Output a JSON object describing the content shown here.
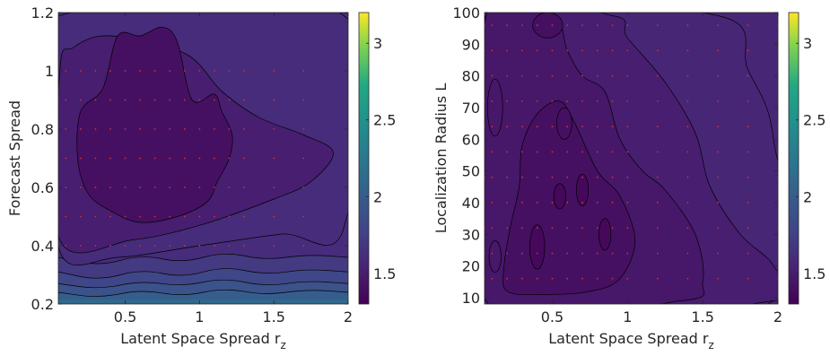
{
  "colors": {
    "viridis_low": "#440154",
    "viridis_mid": "#21918c",
    "viridis_high": "#fde725",
    "sample_points": "#d9302c",
    "contour_lines": "#000000"
  },
  "chart_data": [
    {
      "type": "heatmap",
      "subtype": "filled-contour",
      "xlabel": "Latent Space Spread r",
      "xlabel_subscript": "z",
      "ylabel": "Forecast Spread",
      "xlim": [
        0.05,
        2
      ],
      "ylim": [
        0.2,
        1.2
      ],
      "xticks": [
        0.5,
        1,
        1.5,
        2
      ],
      "xtick_labels": [
        "0.5",
        "1",
        "1.5",
        "2"
      ],
      "yticks": [
        0.2,
        0.4,
        0.6,
        0.8,
        1,
        1.2
      ],
      "ytick_labels": [
        "0.2",
        "0.4",
        "0.6",
        "0.8",
        "1",
        "1.2"
      ],
      "colorbar": {
        "range": [
          1.3,
          3.2
        ],
        "ticks": [
          1.5,
          2,
          2.5,
          3
        ],
        "tick_labels": [
          "1.5",
          "2",
          "2.5",
          "3"
        ],
        "colormap": "viridis"
      },
      "sample_x": [
        0.05,
        0.1,
        0.2,
        0.3,
        0.4,
        0.5,
        0.6,
        0.7,
        0.8,
        0.9,
        1.0,
        1.1,
        1.2,
        1.3,
        1.5,
        1.7,
        2.0
      ],
      "sample_y": [
        0.4,
        0.5,
        0.6,
        0.7,
        0.8,
        0.9,
        1.0
      ],
      "regions": [
        {
          "level": 1.6,
          "points": [
            [
              0.06,
              0.9
            ],
            [
              0.06,
              0.38
            ],
            [
              0.45,
              0.36
            ],
            [
              1.0,
              0.4
            ],
            [
              1.55,
              0.44
            ],
            [
              1.97,
              0.46
            ],
            [
              1.97,
              1.19
            ],
            [
              0.06,
              1.19
            ]
          ]
        },
        {
          "level": 1.5,
          "points": [
            [
              0.06,
              1.0
            ],
            [
              0.06,
              0.42
            ],
            [
              0.55,
              0.42
            ],
            [
              1.0,
              0.47
            ],
            [
              1.5,
              0.56
            ],
            [
              1.75,
              0.62
            ],
            [
              1.9,
              0.72
            ],
            [
              1.7,
              0.78
            ],
            [
              1.4,
              0.84
            ],
            [
              1.15,
              0.93
            ],
            [
              0.9,
              1.06
            ],
            [
              0.4,
              1.12
            ],
            [
              0.15,
              1.08
            ]
          ]
        },
        {
          "level": 1.4,
          "points": [
            [
              0.2,
              0.86
            ],
            [
              0.18,
              0.7
            ],
            [
              0.25,
              0.58
            ],
            [
              0.4,
              0.52
            ],
            [
              0.6,
              0.48
            ],
            [
              0.85,
              0.5
            ],
            [
              1.05,
              0.55
            ],
            [
              1.12,
              0.62
            ],
            [
              1.2,
              0.7
            ],
            [
              1.22,
              0.78
            ],
            [
              1.15,
              0.86
            ],
            [
              1.1,
              0.92
            ],
            [
              0.95,
              0.9
            ],
            [
              0.85,
              1.1
            ],
            [
              0.75,
              1.15
            ],
            [
              0.6,
              1.12
            ],
            [
              0.45,
              1.12
            ],
            [
              0.35,
              0.94
            ]
          ]
        }
      ],
      "bands": [
        {
          "level": 1.7,
          "ys": [
            0.36,
            0.33,
            0.37,
            0.34,
            0.38,
            0.35,
            0.37,
            0.36
          ]
        },
        {
          "level": 1.8,
          "ys": [
            0.31,
            0.28,
            0.32,
            0.29,
            0.33,
            0.3,
            0.32,
            0.31
          ]
        },
        {
          "level": 1.9,
          "ys": [
            0.27,
            0.25,
            0.28,
            0.26,
            0.29,
            0.26,
            0.28,
            0.27
          ]
        },
        {
          "level": 2.0,
          "ys": [
            0.24,
            0.22,
            0.25,
            0.225,
            0.255,
            0.23,
            0.25,
            0.24
          ]
        }
      ]
    },
    {
      "type": "heatmap",
      "subtype": "filled-contour",
      "xlabel": "Latent Space Spread r",
      "xlabel_subscript": "z",
      "ylabel": "Localization Radius L",
      "xlim": [
        0.05,
        2
      ],
      "ylim": [
        8,
        100
      ],
      "xticks": [
        0.5,
        1,
        1.5,
        2
      ],
      "xtick_labels": [
        "0.5",
        "1",
        "1.5",
        "2"
      ],
      "yticks": [
        10,
        20,
        30,
        40,
        50,
        60,
        70,
        80,
        90,
        100
      ],
      "ytick_labels": [
        "10",
        "20",
        "30",
        "40",
        "50",
        "60",
        "70",
        "80",
        "90",
        "100"
      ],
      "colorbar": {
        "range": [
          1.3,
          3.2
        ],
        "ticks": [
          1.5,
          2,
          2.5,
          3
        ],
        "tick_labels": [
          "1.5",
          "2",
          "2.5",
          "3"
        ],
        "colormap": "viridis"
      },
      "sample_x": [
        0.05,
        0.1,
        0.2,
        0.3,
        0.4,
        0.5,
        0.6,
        0.7,
        0.8,
        0.9,
        1.0,
        1.2,
        1.4,
        1.6,
        1.8,
        2.0
      ],
      "sample_y": [
        16,
        24,
        32,
        40,
        48,
        56,
        64,
        72,
        80,
        88,
        96
      ],
      "regions": [
        {
          "level": 1.55,
          "points": [
            [
              0.06,
              99
            ],
            [
              0.06,
              9
            ],
            [
              1.97,
              9
            ],
            [
              1.97,
              60
            ],
            [
              1.8,
              82
            ],
            [
              1.6,
              99
            ]
          ]
        },
        {
          "level": 1.5,
          "points": [
            [
              0.06,
              99
            ],
            [
              0.06,
              9
            ],
            [
              1.97,
              9
            ],
            [
              1.97,
              20
            ],
            [
              1.75,
              30
            ],
            [
              1.55,
              45
            ],
            [
              1.45,
              62
            ],
            [
              1.25,
              78
            ],
            [
              1.0,
              92
            ],
            [
              0.9,
              99
            ]
          ]
        },
        {
          "level": 1.45,
          "points": [
            [
              0.06,
              99
            ],
            [
              0.06,
              9
            ],
            [
              1.35,
              9
            ],
            [
              1.5,
              15
            ],
            [
              1.45,
              30
            ],
            [
              1.25,
              44
            ],
            [
              1.1,
              50
            ],
            [
              0.95,
              60
            ],
            [
              0.85,
              75
            ],
            [
              0.7,
              80
            ],
            [
              0.6,
              88
            ],
            [
              0.5,
              99
            ]
          ]
        },
        {
          "level": 1.4,
          "points": [
            [
              0.2,
              12
            ],
            [
              0.45,
              11
            ],
            [
              0.75,
              12
            ],
            [
              0.95,
              16
            ],
            [
              1.05,
              28
            ],
            [
              0.95,
              42
            ],
            [
              0.8,
              50
            ],
            [
              0.65,
              65
            ],
            [
              0.55,
              72
            ],
            [
              0.4,
              68
            ],
            [
              0.3,
              58
            ],
            [
              0.28,
              45
            ],
            [
              0.22,
              32
            ],
            [
              0.18,
              20
            ]
          ]
        }
      ],
      "holes": [
        {
          "level": 1.45,
          "cx": 0.12,
          "cy": 70,
          "rx": 0.05,
          "ry": 9
        },
        {
          "level": 1.4,
          "cx": 0.58,
          "cy": 65,
          "rx": 0.05,
          "ry": 5
        },
        {
          "level": 1.35,
          "cx": 0.55,
          "cy": 42,
          "rx": 0.04,
          "ry": 4
        },
        {
          "level": 1.35,
          "cx": 0.7,
          "cy": 44,
          "rx": 0.04,
          "ry": 5
        },
        {
          "level": 1.35,
          "cx": 0.4,
          "cy": 26,
          "rx": 0.05,
          "ry": 7
        },
        {
          "level": 1.35,
          "cx": 0.85,
          "cy": 30,
          "rx": 0.04,
          "ry": 5
        },
        {
          "level": 1.4,
          "cx": 0.47,
          "cy": 96,
          "rx": 0.1,
          "ry": 4
        },
        {
          "level": 1.45,
          "cx": 0.12,
          "cy": 23,
          "rx": 0.04,
          "ry": 5
        }
      ]
    }
  ]
}
